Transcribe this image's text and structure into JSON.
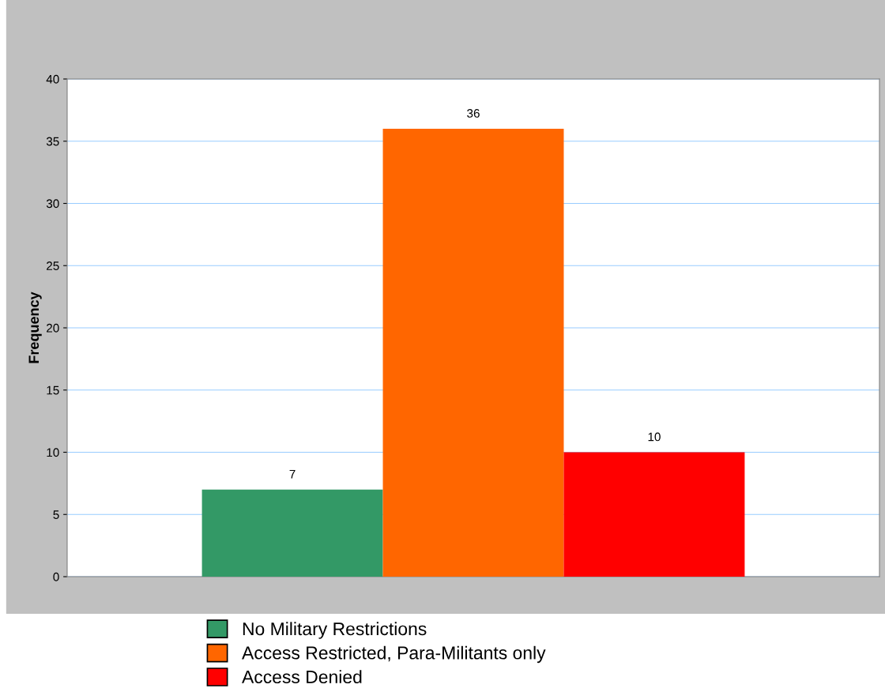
{
  "chart_data": {
    "type": "bar",
    "ylabel": "Frequency",
    "categories": [
      null
    ],
    "series": [
      {
        "name": "No Military Restrictions",
        "color": "#339966",
        "values": [
          7
        ]
      },
      {
        "name": "Access Restricted, Para-Militants only",
        "color": "#ff6600",
        "values": [
          36
        ]
      },
      {
        "name": "Access Denied",
        "color": "#ff0000",
        "values": [
          10
        ]
      }
    ],
    "ylim": [
      0,
      40
    ],
    "yticks": [
      0,
      5,
      10,
      15,
      20,
      25,
      30,
      35,
      40
    ],
    "grid": "y",
    "legend": "bottom",
    "data_labels": true
  }
}
